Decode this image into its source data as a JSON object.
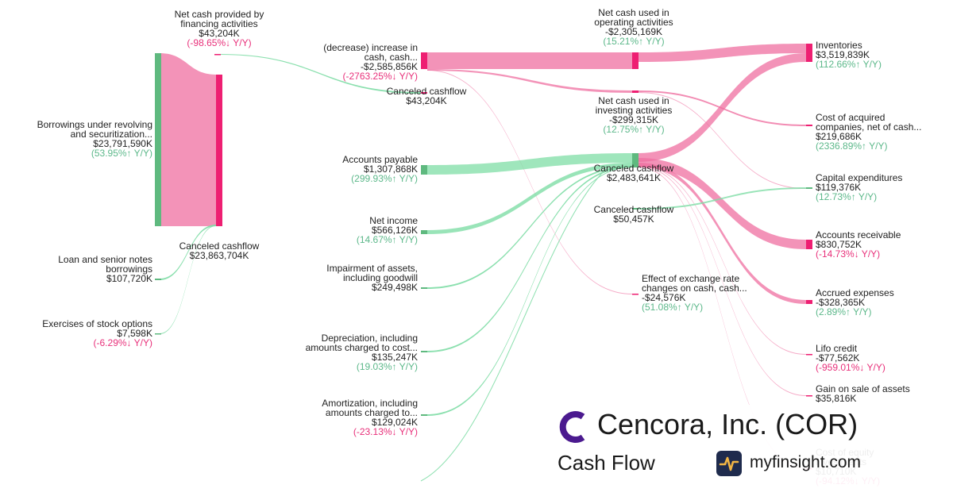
{
  "colors": {
    "pink": "#ef6fa0",
    "pink_dark": "#ee1f72",
    "green": "#7fdda6",
    "green_dark": "#5fb97f",
    "pos": "#5cb88a",
    "neg": "#e8307a"
  },
  "brand": {
    "company": "Cencora, Inc. (COR)",
    "subtitle": "Cash Flow",
    "site": "myfinsight.com",
    "logo_icon": "cencora-c-logo-icon",
    "site_icon": "myfinsight-pulse-icon"
  },
  "chart_data": {
    "type": "sankey",
    "nodes": [
      {
        "id": "fin",
        "name": [
          "Net cash provided by",
          "financing activities"
        ],
        "value": "$43,204K",
        "change": "(-98.65%↓ Y/Y)",
        "dir": "neg"
      },
      {
        "id": "borrow",
        "name": [
          "Borrowings under revolving",
          "and securitization..."
        ],
        "value": "$23,791,590K",
        "change": "(53.95%↑ Y/Y)",
        "dir": "pos"
      },
      {
        "id": "loan",
        "name": [
          "Loan and senior notes",
          "borrowings"
        ],
        "value": "$107,720K"
      },
      {
        "id": "stock",
        "name": [
          "Exercises of stock options"
        ],
        "value": "$7,598K",
        "change": "(-6.29%↓ Y/Y)",
        "dir": "neg"
      },
      {
        "id": "cf1",
        "name": [
          "Canceled cashflow"
        ],
        "value": "$23,863,704K"
      },
      {
        "id": "decr",
        "name": [
          "(decrease) increase in",
          "cash, cash..."
        ],
        "value": "-$2,585,856K",
        "change": "(-2763.25%↓ Y/Y)",
        "dir": "neg"
      },
      {
        "id": "cf2",
        "name": [
          "Canceled cashflow"
        ],
        "value": "$43,204K"
      },
      {
        "id": "ap",
        "name": [
          "Accounts payable"
        ],
        "value": "$1,307,868K",
        "change": "(299.93%↑ Y/Y)",
        "dir": "pos"
      },
      {
        "id": "ni",
        "name": [
          "Net income"
        ],
        "value": "$566,126K",
        "change": "(14.67%↑ Y/Y)",
        "dir": "pos"
      },
      {
        "id": "imp",
        "name": [
          "Impairment of assets,",
          "including goodwill"
        ],
        "value": "$249,498K"
      },
      {
        "id": "dep",
        "name": [
          "Depreciation, including",
          "amounts charged to cost..."
        ],
        "value": "$135,247K",
        "change": "(19.03%↑ Y/Y)",
        "dir": "pos"
      },
      {
        "id": "amort",
        "name": [
          "Amortization, including",
          "amounts charged to..."
        ],
        "value": "$129,024K",
        "change": "(-23.13%↓ Y/Y)",
        "dir": "neg"
      },
      {
        "id": "op",
        "name": [
          "Net cash used in",
          "operating activities"
        ],
        "value": "-$2,305,169K",
        "change": "(15.21%↑ Y/Y)",
        "dir": "pos"
      },
      {
        "id": "inv",
        "name": [
          "Net cash used in",
          "investing activities"
        ],
        "value": "-$299,315K",
        "change": "(12.75%↑ Y/Y)",
        "dir": "pos"
      },
      {
        "id": "cf3",
        "name": [
          "Canceled cashflow"
        ],
        "value": "$2,483,641K"
      },
      {
        "id": "cf4",
        "name": [
          "Canceled cashflow"
        ],
        "value": "$50,457K"
      },
      {
        "id": "fx",
        "name": [
          "Effect of exchange rate",
          "changes on cash, cash..."
        ],
        "value": "-$24,576K",
        "change": "(51.08%↑ Y/Y)",
        "dir": "pos"
      },
      {
        "id": "invent",
        "name": [
          "Inventories"
        ],
        "value": "$3,519,839K",
        "change": "(112.66%↑ Y/Y)",
        "dir": "pos"
      },
      {
        "id": "acq",
        "name": [
          "Cost of acquired",
          "companies, net of cash..."
        ],
        "value": "$219,686K",
        "change": "(2336.89%↑ Y/Y)",
        "dir": "pos"
      },
      {
        "id": "capex",
        "name": [
          "Capital expenditures"
        ],
        "value": "$119,376K",
        "change": "(12.73%↑ Y/Y)",
        "dir": "pos"
      },
      {
        "id": "ar",
        "name": [
          "Accounts receivable"
        ],
        "value": "$830,752K",
        "change": "(-14.73%↓ Y/Y)",
        "dir": "neg"
      },
      {
        "id": "accr",
        "name": [
          "Accrued expenses"
        ],
        "value": "-$328,365K",
        "change": "(2.89%↑ Y/Y)",
        "dir": "pos"
      },
      {
        "id": "lifo",
        "name": [
          "Lifo credit"
        ],
        "value": "-$77,562K",
        "change": "(-959.01%↓ Y/Y)",
        "dir": "neg"
      },
      {
        "id": "gain",
        "name": [
          "Gain on sale of assets"
        ],
        "value": "$35,816K"
      },
      {
        "id": "eq",
        "name": [
          "Cost of equity",
          "investments"
        ],
        "value": "$10,710K",
        "change": "(-94.12%↓ Y/Y)",
        "dir": "neg"
      }
    ],
    "links": [
      {
        "source": "borrow",
        "target": "cf1"
      },
      {
        "source": "loan",
        "target": "cf1"
      },
      {
        "source": "stock",
        "target": "cf1"
      },
      {
        "source": "fin",
        "target": "cf2"
      },
      {
        "source": "decr",
        "target": "op"
      },
      {
        "source": "decr",
        "target": "inv"
      },
      {
        "source": "decr",
        "target": "fx"
      },
      {
        "source": "ap",
        "target": "cf3"
      },
      {
        "source": "ni",
        "target": "cf3"
      },
      {
        "source": "imp",
        "target": "cf3"
      },
      {
        "source": "dep",
        "target": "cf3"
      },
      {
        "source": "amort",
        "target": "cf3"
      },
      {
        "source": "op",
        "target": "invent"
      },
      {
        "source": "inv",
        "target": "acq"
      },
      {
        "source": "inv",
        "target": "capex"
      },
      {
        "source": "cf3",
        "target": "invent"
      },
      {
        "source": "cf3",
        "target": "ar"
      },
      {
        "source": "cf3",
        "target": "accr"
      },
      {
        "source": "cf3",
        "target": "lifo"
      },
      {
        "source": "cf3",
        "target": "gain"
      },
      {
        "source": "cf3",
        "target": "eq"
      },
      {
        "source": "cf4",
        "target": "capex"
      }
    ]
  }
}
